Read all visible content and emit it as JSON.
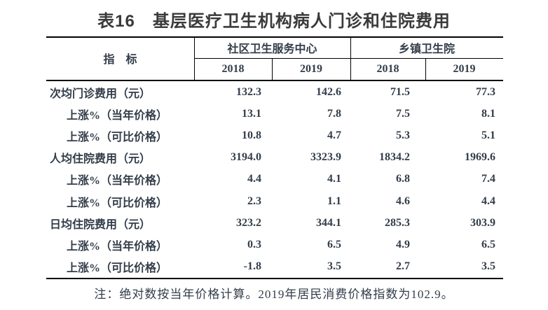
{
  "title": "表16　基层医疗卫生机构病人门诊和住院费用",
  "table": {
    "indicator_header": "指　标",
    "groups": [
      {
        "label": "社区卫生服务中心",
        "years": [
          "2018",
          "2019"
        ]
      },
      {
        "label": "乡镇卫生院",
        "years": [
          "2018",
          "2019"
        ]
      }
    ],
    "rows": [
      {
        "label": "次均门诊费用（元）",
        "indent": false,
        "values": [
          "132.3",
          "142.6",
          "71.5",
          "77.3"
        ]
      },
      {
        "label": "上涨%（当年价格）",
        "indent": true,
        "values": [
          "13.1",
          "7.8",
          "7.5",
          "8.1"
        ]
      },
      {
        "label": "上涨%（可比价格）",
        "indent": true,
        "values": [
          "10.8",
          "4.7",
          "5.3",
          "5.1"
        ]
      },
      {
        "label": "人均住院费用（元）",
        "indent": false,
        "values": [
          "3194.0",
          "3323.9",
          "1834.2",
          "1969.6"
        ]
      },
      {
        "label": "上涨%（当年价格）",
        "indent": true,
        "values": [
          "4.4",
          "4.1",
          "6.8",
          "7.4"
        ]
      },
      {
        "label": "上涨%（可比价格）",
        "indent": true,
        "values": [
          "2.3",
          "1.1",
          "4.6",
          "4.4"
        ]
      },
      {
        "label": "日均住院费用（元）",
        "indent": false,
        "values": [
          "323.2",
          "344.1",
          "285.3",
          "303.9"
        ]
      },
      {
        "label": "上涨%（当年价格）",
        "indent": true,
        "values": [
          "0.3",
          "6.5",
          "4.9",
          "6.5"
        ]
      },
      {
        "label": "上涨%（可比价格）",
        "indent": true,
        "values": [
          "-1.8",
          "3.5",
          "2.7",
          "3.5"
        ]
      }
    ]
  },
  "note": "注：绝对数按当年价格计算。2019年居民消费价格指数为102.9。",
  "colors": {
    "title_text": "#3a3a3a",
    "table_text": "#333d4a",
    "line": "#000000",
    "background": "#ffffff"
  }
}
